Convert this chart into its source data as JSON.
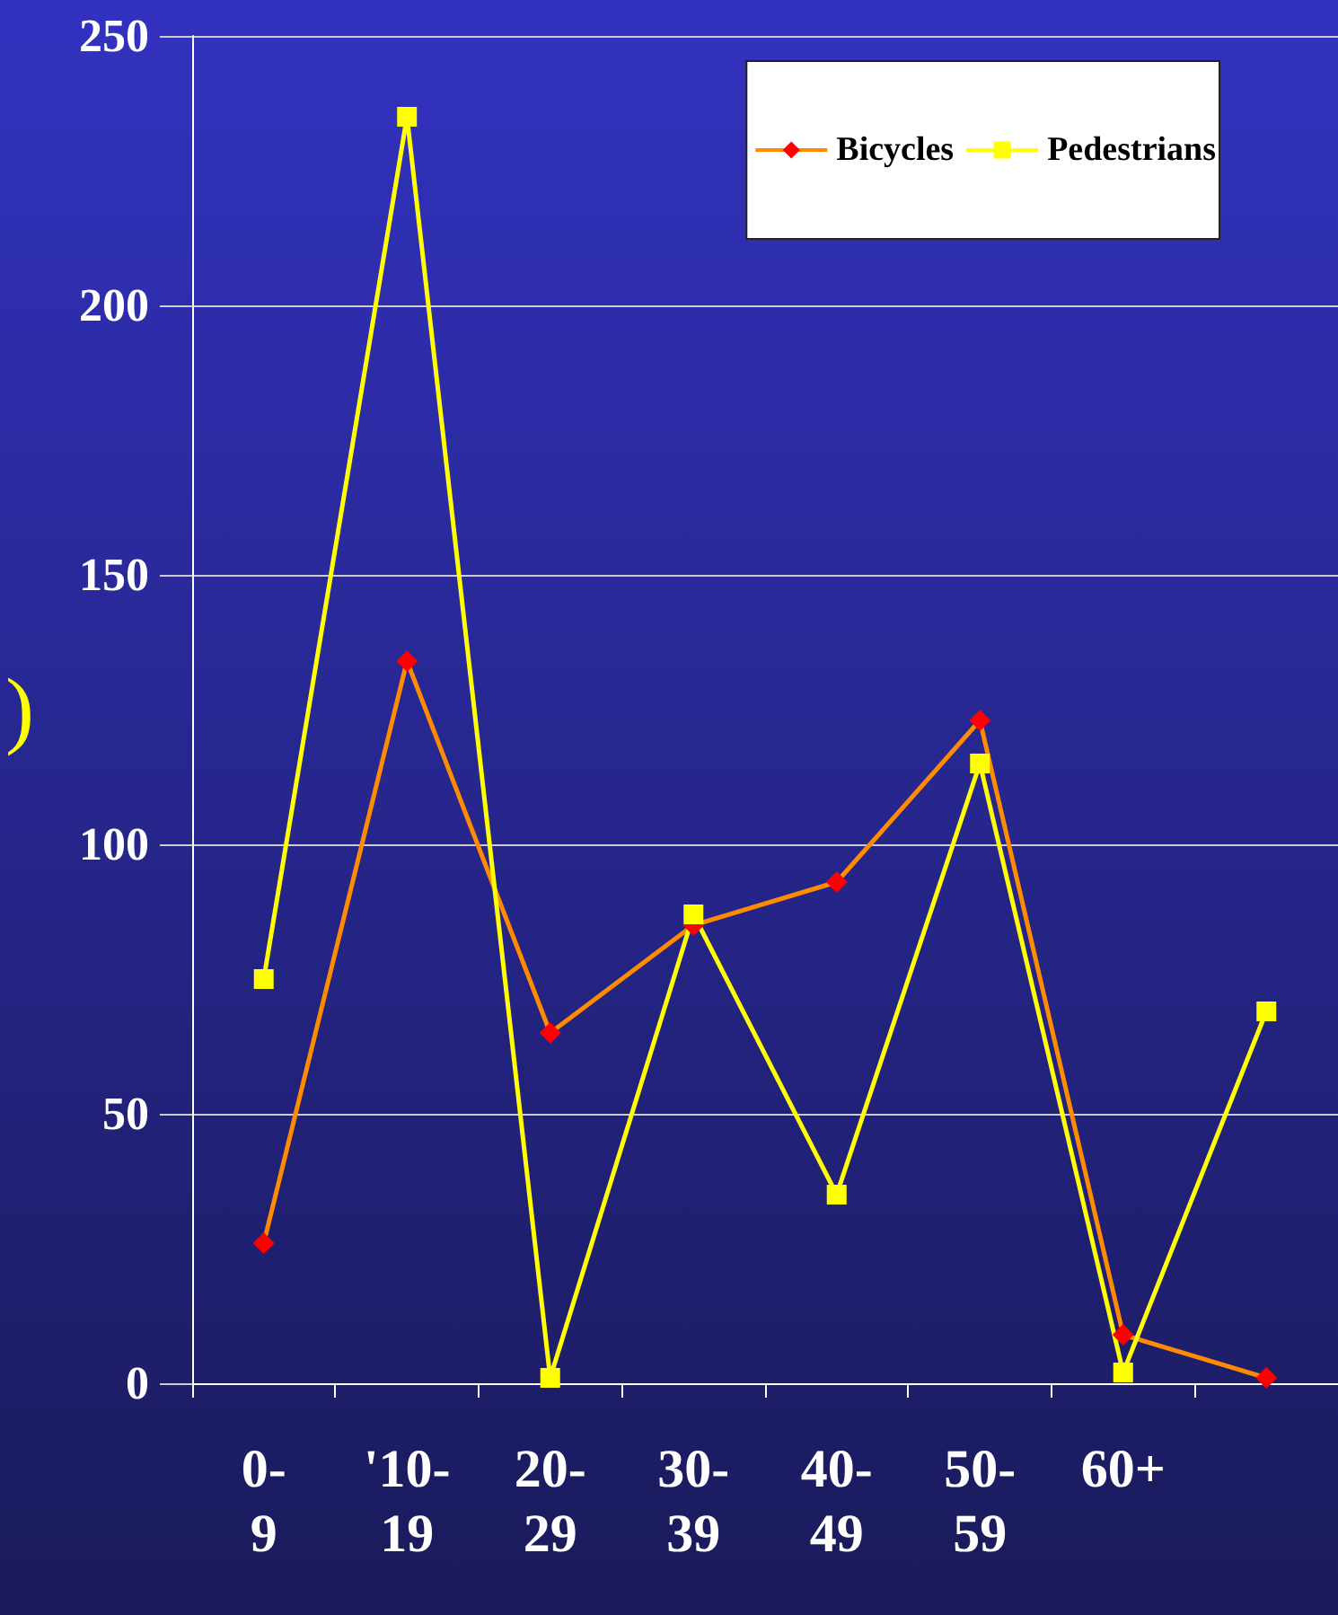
{
  "chart_data": {
    "type": "line",
    "ylabel": ")",
    "categories": [
      "0-9",
      "'10-19",
      "20-29",
      "30-39",
      "40-49",
      "50-59",
      "60+",
      null
    ],
    "series": [
      {
        "name": "Bicycles",
        "color": "#ff8c00",
        "marker": "diamond",
        "values": [
          26,
          134,
          65,
          85,
          93,
          123,
          9,
          1
        ]
      },
      {
        "name": "Pedestrians",
        "color": "#ffff00",
        "marker": "square",
        "values": [
          75,
          235,
          1,
          87,
          35,
          115,
          2,
          69
        ]
      }
    ],
    "ylim": [
      0,
      250
    ],
    "yticks": [
      0,
      50,
      100,
      150,
      200,
      250
    ],
    "grid": "y",
    "legend": "top right"
  }
}
